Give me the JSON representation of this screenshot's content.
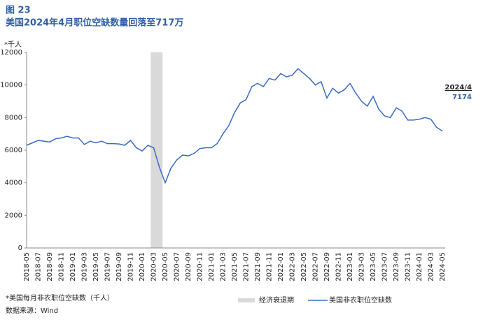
{
  "chart_data": {
    "type": "line",
    "figure_label": "图 23",
    "title": "美国2024年4月职位空缺数量回落至717万",
    "y_label": "*千人",
    "footnote": "*美国每月非农职位空缺数（千人）",
    "source": "数据来源：Wind",
    "annotation": {
      "label": "2024/4",
      "value": 7174
    },
    "categories": [
      "2018-05",
      null,
      "2018-07",
      null,
      "2018-09",
      null,
      "2018-11",
      null,
      "2019-01",
      null,
      "2019-03",
      null,
      "2019-05",
      null,
      "2019-07",
      null,
      "2019-09",
      null,
      "2019-11",
      null,
      "2020-01",
      null,
      "2020-03",
      null,
      "2020-05",
      null,
      "2020-07",
      null,
      "2020-09",
      null,
      "2020-11",
      null,
      "2021-01",
      null,
      "2021-03",
      null,
      "2021-05",
      null,
      "2021-07",
      null,
      "2021-09",
      null,
      "2021-11",
      null,
      "2022-01",
      null,
      "2022-03",
      null,
      "2022-05",
      null,
      "2022-07",
      null,
      "2022-09",
      null,
      "2022-11",
      null,
      "2023-01",
      null,
      "2023-03",
      null,
      "2023-05",
      null,
      "2023-07",
      null,
      "2023-09",
      null,
      "2023-11",
      null,
      "2024-01",
      null,
      "2024-03",
      null,
      "2024-05"
    ],
    "series": [
      {
        "name": "经济衰退期",
        "type": "shade",
        "color": "#d9d9d9",
        "values": [
          null,
          null,
          null,
          null,
          null,
          null,
          null,
          null,
          null,
          null,
          null,
          null,
          null,
          null,
          null,
          null,
          null,
          null,
          null,
          null,
          null,
          null,
          12000,
          12000,
          null,
          null,
          null,
          null,
          null,
          null,
          null,
          null,
          null,
          null,
          null,
          null,
          null,
          null,
          null,
          null,
          null,
          null,
          null,
          null,
          null,
          null,
          null,
          null,
          null,
          null,
          null,
          null,
          null,
          null,
          null,
          null,
          null,
          null,
          null,
          null,
          null,
          null,
          null,
          null,
          null,
          null,
          null,
          null,
          null,
          null,
          null,
          null,
          null
        ]
      },
      {
        "name": "美国非农职位空缺数",
        "type": "line",
        "color": "#3a6bbf",
        "values": [
          6300,
          6450,
          6600,
          6550,
          6500,
          6700,
          6750,
          6850,
          6750,
          6750,
          6350,
          6550,
          6450,
          6550,
          6400,
          6400,
          6380,
          6300,
          6600,
          6150,
          5950,
          6300,
          6150,
          4950,
          4000,
          4900,
          5400,
          5700,
          5650,
          5800,
          6100,
          6150,
          6150,
          6400,
          7000,
          7500,
          8300,
          8900,
          9100,
          9900,
          10100,
          9900,
          10400,
          10300,
          10700,
          10500,
          10600,
          11000,
          10700,
          10400,
          10000,
          10200,
          9200,
          9800,
          9500,
          9700,
          10100,
          9500,
          9000,
          8700,
          9300,
          8500,
          8100,
          8000,
          8600,
          8400,
          7850,
          7850,
          7900,
          8000,
          7900,
          7400,
          7174
        ]
      }
    ],
    "ylim": [
      0,
      12000
    ],
    "yticks": [
      0,
      2000,
      4000,
      6000,
      8000,
      10000,
      12000
    ]
  }
}
